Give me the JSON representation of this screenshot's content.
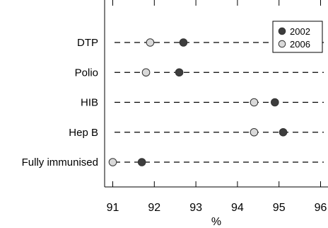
{
  "chart_data": {
    "type": "scatter",
    "categories": [
      "DTP",
      "Polio",
      "HIB",
      "Hep B",
      "Fully immunised"
    ],
    "series": [
      {
        "name": "2002",
        "values": [
          92.7,
          92.6,
          94.9,
          95.1,
          91.7
        ],
        "color": "#3d3d3d"
      },
      {
        "name": "2006",
        "values": [
          91.9,
          91.8,
          94.4,
          94.4,
          91.0
        ],
        "color": "#d9d9d9"
      }
    ],
    "xlim": [
      90.9,
      96.1
    ],
    "xticks": [
      91,
      92,
      93,
      94,
      95,
      96
    ],
    "xlabel": "%",
    "ylabel": "",
    "title": "",
    "grid": "dashed row guide lines",
    "legend_position": "top-right"
  }
}
